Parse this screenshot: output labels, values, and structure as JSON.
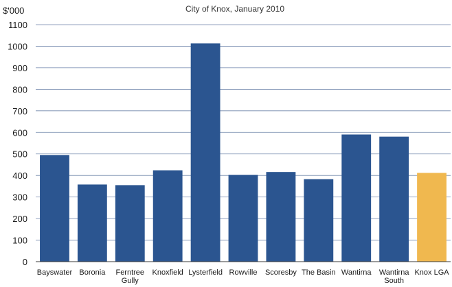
{
  "chart_data": {
    "type": "bar",
    "title": "City of Knox, January 2010",
    "ylabel": "$'000",
    "xlabel": "",
    "ylim": [
      0,
      1100
    ],
    "ytick_step": 100,
    "grid": true,
    "legend": "none",
    "categories": [
      "Bayswater",
      "Boronia",
      "Ferntree Gully",
      "Knoxfield",
      "Lysterfield",
      "Rowville",
      "Scoresby",
      "The Basin",
      "Wantirna",
      "Wantirna South",
      "Knox LGA"
    ],
    "category_lines": [
      [
        "Bayswater"
      ],
      [
        "Boronia"
      ],
      [
        "Ferntree",
        "Gully"
      ],
      [
        "Knoxfield"
      ],
      [
        "Lysterfield"
      ],
      [
        "Rowville"
      ],
      [
        "Scoresby"
      ],
      [
        "The Basin"
      ],
      [
        "Wantirna"
      ],
      [
        "Wantirna",
        "South"
      ],
      [
        "Knox LGA"
      ]
    ],
    "values": [
      495,
      358,
      355,
      424,
      1013,
      403,
      416,
      383,
      590,
      580,
      412
    ],
    "colors": {
      "bar": "#2b5590",
      "highlight": "#f0b84f",
      "grid": "#6b82a8",
      "axis": "#3a3a3a"
    },
    "highlight_index": 10
  }
}
